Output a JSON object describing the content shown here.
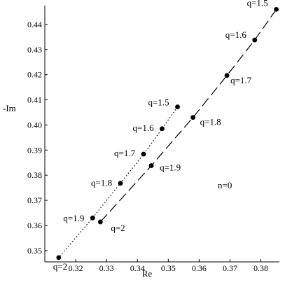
{
  "chart_data": {
    "type": "line",
    "title": "",
    "xlabel": "Re",
    "ylabel": "-Im",
    "xlim": [
      0.31,
      0.386
    ],
    "ylim": [
      0.3455,
      0.4475
    ],
    "xticks": [
      0.32,
      0.33,
      0.34,
      0.35,
      0.36,
      0.37,
      0.38
    ],
    "xtick_labels": [
      "0.32",
      "0.33",
      "0.34",
      "0.35",
      "0.36",
      "0.37",
      "0.38"
    ],
    "yticks": [
      0.35,
      0.36,
      0.37,
      0.38,
      0.39,
      0.4,
      0.41,
      0.42,
      0.43,
      0.44
    ],
    "ytick_labels": [
      "0.35",
      "0.36",
      "0.37",
      "0.38",
      "0.39",
      "0.40",
      "0.41",
      "0.42",
      "0.43",
      "0.44"
    ],
    "annotation": "n=0",
    "series": [
      {
        "style": "dashed",
        "points": [
          {
            "x": 0.385,
            "y": 0.446,
            "label": "q=1.5"
          },
          {
            "x": 0.378,
            "y": 0.4338,
            "label": "q=1.6"
          },
          {
            "x": 0.369,
            "y": 0.4197,
            "label": "q=1.7"
          },
          {
            "x": 0.358,
            "y": 0.403,
            "label": "q=1.8"
          },
          {
            "x": 0.3445,
            "y": 0.3838,
            "label": "q=1.9"
          },
          {
            "x": 0.328,
            "y": 0.3614,
            "label": "q=2"
          }
        ]
      },
      {
        "style": "dotted",
        "points": [
          {
            "x": 0.353,
            "y": 0.4072,
            "label": "q=1.5"
          },
          {
            "x": 0.348,
            "y": 0.3985,
            "label": "q=1.6"
          },
          {
            "x": 0.342,
            "y": 0.3884,
            "label": "q=1.7"
          },
          {
            "x": 0.3345,
            "y": 0.3768,
            "label": "q=1.8"
          },
          {
            "x": 0.3255,
            "y": 0.363,
            "label": "q=1.9"
          },
          {
            "x": 0.3145,
            "y": 0.3472,
            "label": "q=2"
          }
        ]
      }
    ]
  }
}
